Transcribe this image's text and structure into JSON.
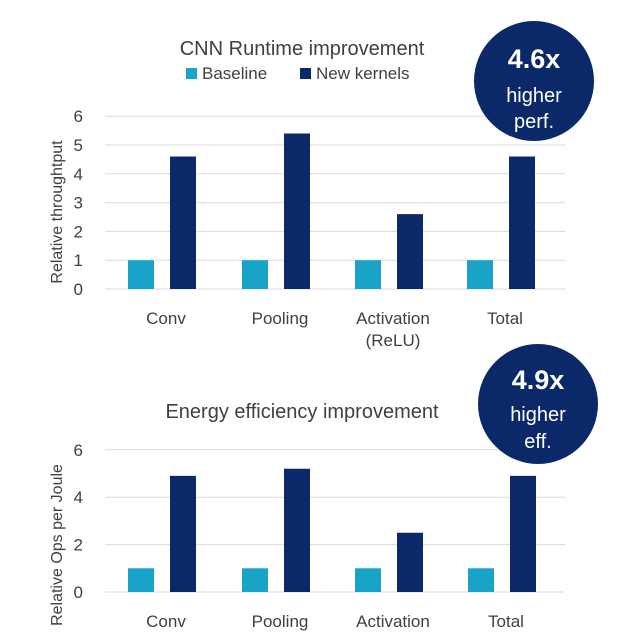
{
  "colors": {
    "baseline": "#1aa3c8",
    "new_kernels": "#0b2869",
    "badge_fill": "#0b2869",
    "badge_text": "#ffffff",
    "text": "#404040",
    "grid": "#d9d9d9"
  },
  "chart_data": [
    {
      "type": "bar",
      "title": "CNN Runtime improvement",
      "ylabel": "Relative throughtput",
      "xlabel": "",
      "ylim": [
        0,
        6
      ],
      "yticks": [
        0,
        1,
        2,
        3,
        4,
        5,
        6
      ],
      "grid": true,
      "legend": "top",
      "categories": [
        "Conv",
        "Pooling",
        "Activation\n(ReLU)",
        "Total"
      ],
      "series": [
        {
          "name": "Baseline",
          "values": [
            1,
            1,
            1,
            1
          ]
        },
        {
          "name": "New kernels",
          "values": [
            4.6,
            5.4,
            2.6,
            4.6
          ]
        }
      ],
      "badge": {
        "value": "4.6x",
        "line1": "higher",
        "line2": "perf."
      }
    },
    {
      "type": "bar",
      "title": "Energy efficiency improvement",
      "ylabel": "Relative Ops per Joule",
      "xlabel": "",
      "ylim": [
        0,
        6
      ],
      "yticks": [
        0,
        2,
        4,
        6
      ],
      "grid": true,
      "legend": "none",
      "categories": [
        "Conv",
        "Pooling",
        "Activation",
        "Total"
      ],
      "series": [
        {
          "name": "Baseline",
          "values": [
            1,
            1,
            1,
            1
          ]
        },
        {
          "name": "New kernels",
          "values": [
            4.9,
            5.2,
            2.5,
            4.9
          ]
        }
      ],
      "badge": {
        "value": "4.9x",
        "line1": "higher",
        "line2": "eff."
      }
    }
  ]
}
